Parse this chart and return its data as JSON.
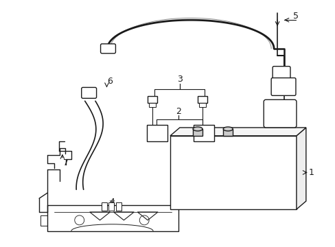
{
  "background": "#ffffff",
  "lc": "#1a1a1a",
  "fig_w": 4.89,
  "fig_h": 3.6,
  "dpi": 100
}
